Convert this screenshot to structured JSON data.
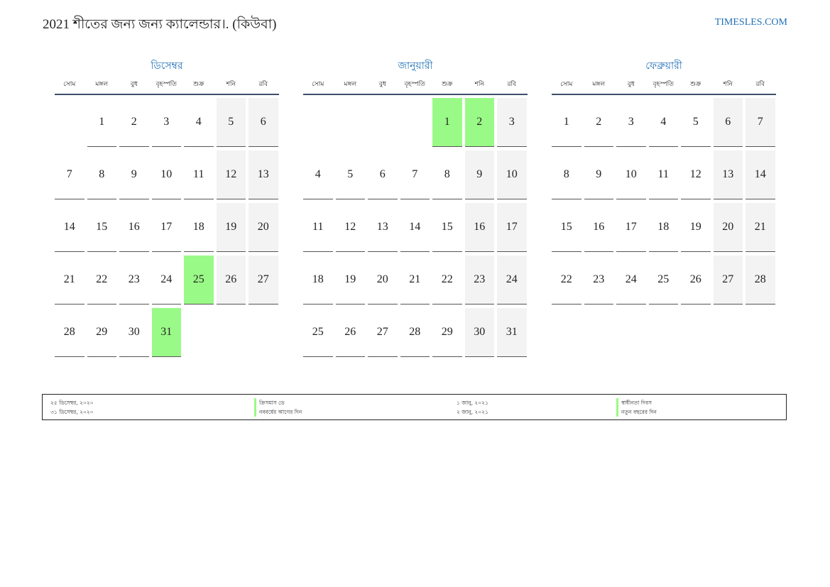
{
  "header": {
    "title": "2021 শীতের জন্য জন্য ক্যালেন্ডার।. (কিউবা)",
    "site": "TIMESLES.COM"
  },
  "colors": {
    "accent": "#1f6fb5",
    "holiday": "#9afa87",
    "weekend": "#f3f3f3"
  },
  "weekdays": [
    "সোম",
    "মঙ্গল",
    "বুধ",
    "বৃহস্পতি",
    "শুক্র",
    "শনি",
    "রবি"
  ],
  "months": [
    {
      "name": "ডিসেম্বর",
      "offset": 1,
      "days": 31,
      "holidays": [
        25,
        31
      ]
    },
    {
      "name": "জানুয়ারী",
      "offset": 4,
      "days": 31,
      "holidays": [
        1,
        2
      ]
    },
    {
      "name": "ফেব্রুয়ারী",
      "offset": 0,
      "days": 28,
      "holidays": []
    }
  ],
  "legend": {
    "col1": [
      "২৫ ডিসেম্বর, ২০২০",
      "৩১ ডিসেম্বর, ২০২০"
    ],
    "col2": [
      "ক্রিসমাস ডে",
      "নববর্ষের আগের দিন"
    ],
    "col3": [
      "১ জানু, ২০২১",
      "২ জানু, ২০২১"
    ],
    "col4": [
      "স্বাধীনতা দিবস",
      "নতুন বছরের দিন"
    ]
  }
}
